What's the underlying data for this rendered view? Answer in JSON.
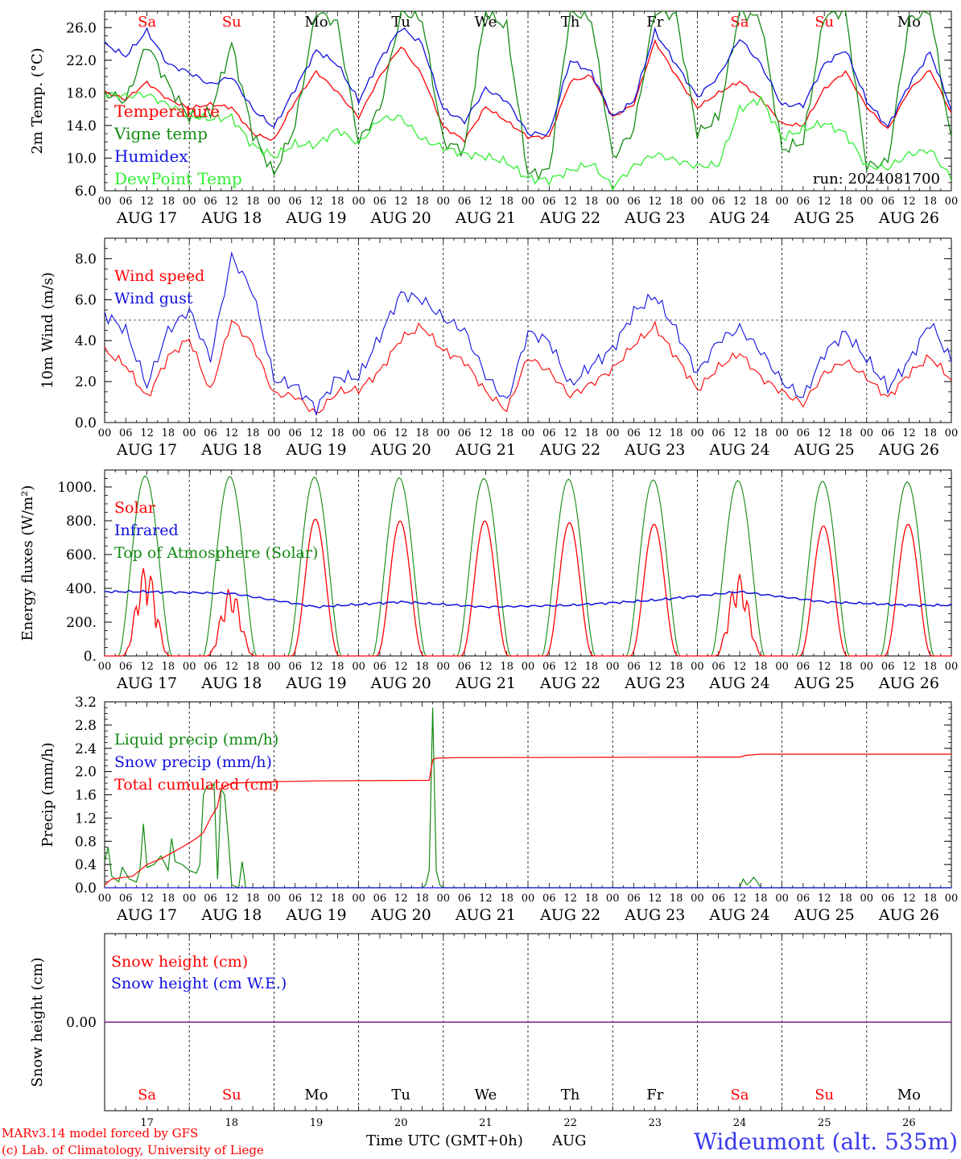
{
  "days": {
    "weekdays": [
      "Sa",
      "Su",
      "Mo",
      "Tu",
      "We",
      "Th",
      "Fr",
      "Sa",
      "Su",
      "Mo"
    ],
    "weekend_flags": [
      true,
      true,
      false,
      false,
      false,
      false,
      false,
      true,
      true,
      false
    ],
    "dates": [
      "AUG 17",
      "AUG 18",
      "AUG 19",
      "AUG 20",
      "AUG 21",
      "AUG 22",
      "AUG 23",
      "AUG 24",
      "AUG 25",
      "AUG 26"
    ],
    "day_numbers": [
      "17",
      "18",
      "19",
      "20",
      "21",
      "22",
      "23",
      "24",
      "25",
      "26"
    ],
    "hour_ticks": [
      "00",
      "06",
      "12",
      "18"
    ],
    "final_tick": "00"
  },
  "footer": {
    "credit_line1": "MARv3.14 model forced by GFS",
    "credit_line2": "(c) Lab. of Climatology, University of Liege",
    "time_label": "Time UTC (GMT+0h)",
    "month_label": "AUG",
    "station": "Wideumont (alt. 535m)"
  },
  "colors": {
    "red": "#ff0000",
    "green": "#138a13",
    "blue": "#1010e0",
    "light_green": "#33ee33",
    "purple": "#7a1f8a",
    "station_blue": "#3a3aee",
    "weekend_red": "#ff0000"
  },
  "chart_data": [
    {
      "type": "line",
      "ylabel": "2m Temp. (°C)",
      "ylim": [
        6.0,
        28.0
      ],
      "yticks": [
        6.0,
        10.0,
        14.0,
        18.0,
        22.0,
        26.0
      ],
      "ytick_labels": [
        "6.0",
        "10.0",
        "14.0",
        "18.0",
        "22.0",
        "26.0"
      ],
      "annotation": "run: 2024081700",
      "x_hours": [
        0,
        6,
        12,
        18,
        24,
        30,
        36,
        42,
        48,
        54,
        60,
        66,
        72,
        78,
        84,
        90,
        96,
        102,
        108,
        114,
        120,
        126,
        132,
        138,
        144,
        150,
        156,
        162,
        168,
        174,
        180,
        186,
        192,
        198,
        204,
        210,
        216,
        222,
        228,
        234,
        240
      ],
      "series": [
        {
          "name": "Temperature",
          "color": "red",
          "values": [
            18.1,
            17.2,
            19.3,
            17.2,
            16.1,
            16.6,
            16.2,
            13.0,
            12.2,
            17.0,
            20.6,
            18.1,
            15.0,
            20.0,
            23.7,
            20.2,
            13.8,
            12.2,
            16.3,
            14.5,
            12.6,
            12.6,
            19.4,
            20.1,
            15.0,
            16.6,
            24.3,
            20.1,
            16.2,
            18.0,
            19.4,
            17.3,
            14.2,
            14.0,
            18.5,
            20.6,
            16.3,
            13.5,
            18.3,
            20.8,
            15.5
          ]
        },
        {
          "name": "Vigne temp",
          "color": "green",
          "values": [
            18.0,
            17.0,
            24.0,
            19.0,
            15.0,
            15.5,
            24.0,
            13.0,
            8.0,
            14.0,
            28.0,
            26.5,
            12.0,
            16.0,
            28.0,
            27.0,
            12.0,
            11.0,
            28.0,
            26.0,
            8.0,
            8.5,
            28.0,
            27.0,
            10.0,
            13.5,
            28.0,
            27.5,
            13.0,
            15.0,
            28.0,
            27.0,
            11.0,
            12.0,
            27.5,
            28.0,
            9.0,
            9.5,
            27.0,
            28.0,
            12.0
          ]
        },
        {
          "name": "Humidex",
          "color": "blue",
          "values": [
            24.0,
            22.5,
            25.6,
            21.5,
            20.5,
            19.0,
            20.0,
            16.0,
            13.8,
            18.5,
            23.2,
            21.5,
            17.0,
            22.0,
            26.0,
            24.0,
            16.0,
            14.5,
            18.5,
            17.0,
            13.0,
            13.0,
            22.0,
            20.5,
            15.0,
            17.0,
            25.5,
            21.5,
            17.5,
            20.0,
            24.7,
            21.5,
            16.5,
            16.5,
            21.5,
            23.3,
            17.0,
            13.8,
            19.0,
            23.0,
            16.0
          ]
        },
        {
          "name": "DewPoint Temp",
          "color": "light_green",
          "values": [
            17.8,
            17.6,
            17.8,
            16.5,
            15.2,
            14.8,
            15.0,
            11.5,
            10.2,
            11.7,
            11.6,
            13.5,
            11.8,
            14.8,
            15.0,
            12.3,
            11.3,
            10.5,
            10.2,
            9.5,
            7.5,
            7.3,
            8.5,
            9.3,
            6.5,
            9.0,
            10.5,
            9.7,
            9.0,
            9.2,
            16.0,
            17.3,
            12.5,
            13.5,
            14.3,
            13.0,
            9.0,
            8.8,
            10.5,
            11.0,
            7.5
          ]
        }
      ]
    },
    {
      "type": "line",
      "ylabel": "10m Wind (m/s)",
      "ylim": [
        0.0,
        9.0
      ],
      "yticks": [
        0.0,
        2.0,
        4.0,
        6.0,
        8.0
      ],
      "ytick_labels": [
        "0.0",
        "2.0",
        "4.0",
        "6.0",
        "8.0"
      ],
      "reference_line": 5.0,
      "x_hours": [
        0,
        6,
        12,
        18,
        24,
        30,
        36,
        42,
        48,
        54,
        60,
        66,
        72,
        78,
        84,
        90,
        96,
        102,
        108,
        114,
        120,
        126,
        132,
        138,
        144,
        150,
        156,
        162,
        168,
        174,
        180,
        186,
        192,
        198,
        204,
        210,
        216,
        222,
        228,
        234,
        240
      ],
      "series": [
        {
          "name": "Wind speed",
          "color": "red",
          "values": [
            3.5,
            2.8,
            1.2,
            3.2,
            4.1,
            1.5,
            5.0,
            3.8,
            1.4,
            1.3,
            0.4,
            1.5,
            1.6,
            2.5,
            4.1,
            4.7,
            3.5,
            3.0,
            1.5,
            0.6,
            3.2,
            2.5,
            1.3,
            1.9,
            2.6,
            3.8,
            4.7,
            3.2,
            1.6,
            2.7,
            3.4,
            2.2,
            1.5,
            0.9,
            2.4,
            3.0,
            2.2,
            1.2,
            2.4,
            3.2,
            2.1
          ]
        },
        {
          "name": "Wind gust",
          "color": "blue",
          "values": [
            5.3,
            4.5,
            1.8,
            4.5,
            5.5,
            3.1,
            8.1,
            6.4,
            2.1,
            1.8,
            0.7,
            2.2,
            2.2,
            4.2,
            6.3,
            6.0,
            5.1,
            4.5,
            2.3,
            1.0,
            4.4,
            4.0,
            1.8,
            2.8,
            3.6,
            5.4,
            6.2,
            4.5,
            2.4,
            4.0,
            4.6,
            3.5,
            2.0,
            1.2,
            3.4,
            4.4,
            3.1,
            1.7,
            3.0,
            4.9,
            3.0
          ]
        }
      ]
    },
    {
      "type": "line",
      "ylabel": "Energy fluxes (W/m²)",
      "ylim": [
        0,
        1100
      ],
      "yticks": [
        0,
        200,
        400,
        600,
        800,
        1000
      ],
      "ytick_labels": [
        "0.",
        "200.",
        "400.",
        "600.",
        "800.",
        "1000."
      ],
      "series": [
        {
          "name": "Solar",
          "color": "red",
          "daily_peaks": [
            600,
            450,
            810,
            800,
            800,
            790,
            780,
            540,
            770,
            780
          ]
        },
        {
          "name": "Infrared",
          "color": "blue",
          "values_by_day": [
            380,
            370,
            290,
            320,
            290,
            300,
            330,
            380,
            320,
            300
          ]
        },
        {
          "name": "Top of Atmosphere (Solar)",
          "color": "green",
          "daily_peaks": [
            1065,
            1062,
            1058,
            1055,
            1050,
            1046,
            1042,
            1038,
            1034,
            1030
          ]
        }
      ]
    },
    {
      "type": "line",
      "ylabel": "Precip (mm/h)",
      "ylim": [
        0.0,
        3.2
      ],
      "yticks": [
        0.0,
        0.4,
        0.8,
        1.2,
        1.6,
        2.0,
        2.4,
        2.8,
        3.2
      ],
      "ytick_labels": [
        "0.0",
        "0.4",
        "0.8",
        "1.2",
        "1.6",
        "2.0",
        "2.4",
        "2.8",
        "3.2"
      ],
      "series": [
        {
          "name": "Liquid precip (mm/h)",
          "color": "green",
          "points": [
            [
              0,
              0.45
            ],
            [
              1,
              0.7
            ],
            [
              2,
              0.2
            ],
            [
              4,
              0.1
            ],
            [
              5,
              0.35
            ],
            [
              7,
              0.15
            ],
            [
              9,
              0.1
            ],
            [
              10,
              0.3
            ],
            [
              11,
              1.1
            ],
            [
              12,
              0.35
            ],
            [
              14,
              0.4
            ],
            [
              16,
              0.55
            ],
            [
              18,
              0.3
            ],
            [
              19,
              0.85
            ],
            [
              20,
              0.45
            ],
            [
              22,
              0.4
            ],
            [
              24,
              0.3
            ],
            [
              26,
              0.25
            ],
            [
              27,
              0.4
            ],
            [
              28,
              1.6
            ],
            [
              29,
              1.75
            ],
            [
              30,
              1.7
            ],
            [
              31,
              1.8
            ],
            [
              32,
              0.15
            ],
            [
              33,
              1.7
            ],
            [
              34,
              1.6
            ],
            [
              35,
              0.9
            ],
            [
              36,
              0.05
            ],
            [
              38,
              0.0
            ],
            [
              39,
              0.45
            ],
            [
              40,
              0.0
            ],
            [
              42,
              0.0
            ],
            [
              90,
              0.0
            ],
            [
              91,
              0.05
            ],
            [
              92,
              0.3
            ],
            [
              93,
              3.1
            ],
            [
              94,
              0.3
            ],
            [
              95,
              0.05
            ],
            [
              96,
              0.0
            ],
            [
              180,
              0.0
            ],
            [
              181,
              0.15
            ],
            [
              182,
              0.05
            ],
            [
              183,
              0.1
            ],
            [
              184,
              0.18
            ],
            [
              185,
              0.1
            ],
            [
              186,
              0.0
            ],
            [
              240,
              0.0
            ]
          ]
        },
        {
          "name": "Snow precip (mm/h)",
          "color": "blue",
          "points": [
            [
              0,
              0
            ],
            [
              240,
              0
            ]
          ]
        },
        {
          "name": "Total cumulated (cm)",
          "color": "red",
          "points": [
            [
              0,
              0.05
            ],
            [
              2,
              0.15
            ],
            [
              8,
              0.2
            ],
            [
              10,
              0.3
            ],
            [
              12,
              0.4
            ],
            [
              16,
              0.5
            ],
            [
              22,
              0.7
            ],
            [
              26,
              0.85
            ],
            [
              28,
              0.95
            ],
            [
              30,
              1.2
            ],
            [
              32,
              1.4
            ],
            [
              33,
              1.7
            ],
            [
              36,
              1.8
            ],
            [
              44,
              1.82
            ],
            [
              60,
              1.84
            ],
            [
              92,
              1.85
            ],
            [
              93,
              2.2
            ],
            [
              94,
              2.23
            ],
            [
              100,
              2.24
            ],
            [
              180,
              2.25
            ],
            [
              182,
              2.28
            ],
            [
              186,
              2.3
            ],
            [
              240,
              2.3
            ]
          ]
        }
      ]
    },
    {
      "type": "line",
      "ylabel": "Snow height (cm)",
      "ylim": [
        -1.0,
        1.0
      ],
      "yticks": [
        0.0
      ],
      "ytick_labels": [
        "0.00"
      ],
      "series": [
        {
          "name": "Snow height (cm)",
          "color": "red",
          "points": [
            [
              0,
              0
            ],
            [
              240,
              0
            ]
          ]
        },
        {
          "name": "Snow height (cm W.E.)",
          "color": "blue",
          "points": [
            [
              0,
              0
            ],
            [
              240,
              0
            ]
          ]
        }
      ]
    }
  ]
}
